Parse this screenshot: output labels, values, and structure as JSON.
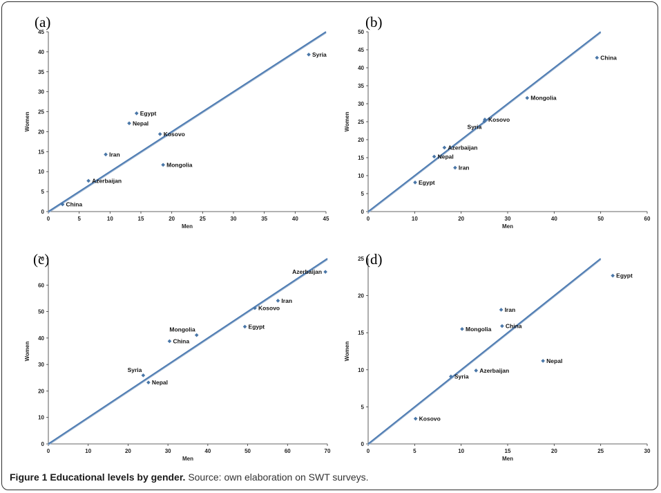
{
  "caption": {
    "title": "Figure 1 Educational levels by gender.",
    "source": "Source: own elaboration on SWT surveys."
  },
  "colors": {
    "point": "#4a77a8",
    "line": "#4f7db3",
    "line_shadow": "#9db4d0",
    "axis": "#333333"
  },
  "chart_data": [
    {
      "panel": "(a)",
      "type": "scatter",
      "xlabel": "Men",
      "ylabel": "Women",
      "xlim": [
        0,
        45
      ],
      "ylim": [
        0,
        45
      ],
      "xticks": [
        0,
        5,
        10,
        15,
        20,
        25,
        30,
        35,
        40,
        45
      ],
      "yticks": [
        0,
        5,
        10,
        15,
        20,
        25,
        30,
        35,
        40,
        45
      ],
      "reference_line": "y = x",
      "points": [
        {
          "label": "Syria",
          "x": 42.2,
          "y": 39.3,
          "pos": "right"
        },
        {
          "label": "Egypt",
          "x": 14.3,
          "y": 24.6,
          "pos": "right"
        },
        {
          "label": "Nepal",
          "x": 13.1,
          "y": 22.1,
          "pos": "right"
        },
        {
          "label": "Kosovo",
          "x": 18.1,
          "y": 19.4,
          "pos": "right"
        },
        {
          "label": "Iran",
          "x": 9.3,
          "y": 14.3,
          "pos": "right"
        },
        {
          "label": "Mongolia",
          "x": 18.6,
          "y": 11.7,
          "pos": "right"
        },
        {
          "label": "Azerbaijan",
          "x": 6.5,
          "y": 7.7,
          "pos": "right"
        },
        {
          "label": "China",
          "x": 2.3,
          "y": 1.8,
          "pos": "right"
        }
      ]
    },
    {
      "panel": "(b)",
      "type": "scatter",
      "xlabel": "Men",
      "ylabel": "Women",
      "xlim": [
        0,
        60
      ],
      "ylim": [
        0,
        50
      ],
      "xticks": [
        0,
        10,
        20,
        30,
        40,
        50,
        60
      ],
      "yticks": [
        0,
        5,
        10,
        15,
        20,
        25,
        30,
        35,
        40,
        45,
        50
      ],
      "reference_line": "y = x",
      "points": [
        {
          "label": "China",
          "x": 49.2,
          "y": 42.8,
          "pos": "right"
        },
        {
          "label": "Mongolia",
          "x": 34.2,
          "y": 31.6,
          "pos": "right"
        },
        {
          "label": "Kosovo",
          "x": 25.1,
          "y": 25.6,
          "pos": "right"
        },
        {
          "label": "Syria",
          "x": 25.0,
          "y": 25.1,
          "pos": "below-left"
        },
        {
          "label": "Azerbaijan",
          "x": 16.4,
          "y": 17.8,
          "pos": "right"
        },
        {
          "label": "Nepal",
          "x": 14.2,
          "y": 15.3,
          "pos": "right"
        },
        {
          "label": "Iran",
          "x": 18.7,
          "y": 12.2,
          "pos": "right"
        },
        {
          "label": "Egypt",
          "x": 10.1,
          "y": 8.1,
          "pos": "right"
        }
      ]
    },
    {
      "panel": "(c)",
      "type": "scatter",
      "xlabel": "Men",
      "ylabel": "Women",
      "xlim": [
        0,
        70
      ],
      "ylim": [
        0,
        70
      ],
      "xticks": [
        0,
        10,
        20,
        30,
        40,
        50,
        60,
        70
      ],
      "yticks": [
        0,
        10,
        20,
        30,
        40,
        50,
        60,
        70
      ],
      "reference_line": "y = x",
      "points": [
        {
          "label": "Azerbaijan",
          "x": 69.5,
          "y": 65.0,
          "pos": "left"
        },
        {
          "label": "Iran",
          "x": 57.6,
          "y": 54.1,
          "pos": "right"
        },
        {
          "label": "Kosovo",
          "x": 51.8,
          "y": 51.3,
          "pos": "right"
        },
        {
          "label": "Egypt",
          "x": 49.3,
          "y": 44.3,
          "pos": "right"
        },
        {
          "label": "Mongolia",
          "x": 37.2,
          "y": 41.1,
          "pos": "above-left"
        },
        {
          "label": "China",
          "x": 30.4,
          "y": 38.8,
          "pos": "right"
        },
        {
          "label": "Syria",
          "x": 23.8,
          "y": 25.9,
          "pos": "above-left"
        },
        {
          "label": "Nepal",
          "x": 25.1,
          "y": 23.2,
          "pos": "right"
        }
      ]
    },
    {
      "panel": "(d)",
      "type": "scatter",
      "xlabel": "Men",
      "ylabel": "Women",
      "xlim": [
        0,
        30
      ],
      "ylim": [
        0,
        25
      ],
      "xticks": [
        0,
        5,
        10,
        15,
        20,
        25,
        30
      ],
      "yticks": [
        0,
        5,
        10,
        15,
        20,
        25
      ],
      "reference_line": "y = x",
      "points": [
        {
          "label": "Egypt",
          "x": 26.3,
          "y": 22.7,
          "pos": "right"
        },
        {
          "label": "Iran",
          "x": 14.3,
          "y": 18.1,
          "pos": "right"
        },
        {
          "label": "China",
          "x": 14.4,
          "y": 15.9,
          "pos": "right"
        },
        {
          "label": "Mongolia",
          "x": 10.1,
          "y": 15.5,
          "pos": "right"
        },
        {
          "label": "Nepal",
          "x": 18.8,
          "y": 11.2,
          "pos": "right"
        },
        {
          "label": "Azerbaijan",
          "x": 11.6,
          "y": 9.9,
          "pos": "right"
        },
        {
          "label": "Syria",
          "x": 8.9,
          "y": 9.1,
          "pos": "right"
        },
        {
          "label": "Kosovo",
          "x": 5.1,
          "y": 3.4,
          "pos": "right"
        }
      ]
    }
  ]
}
